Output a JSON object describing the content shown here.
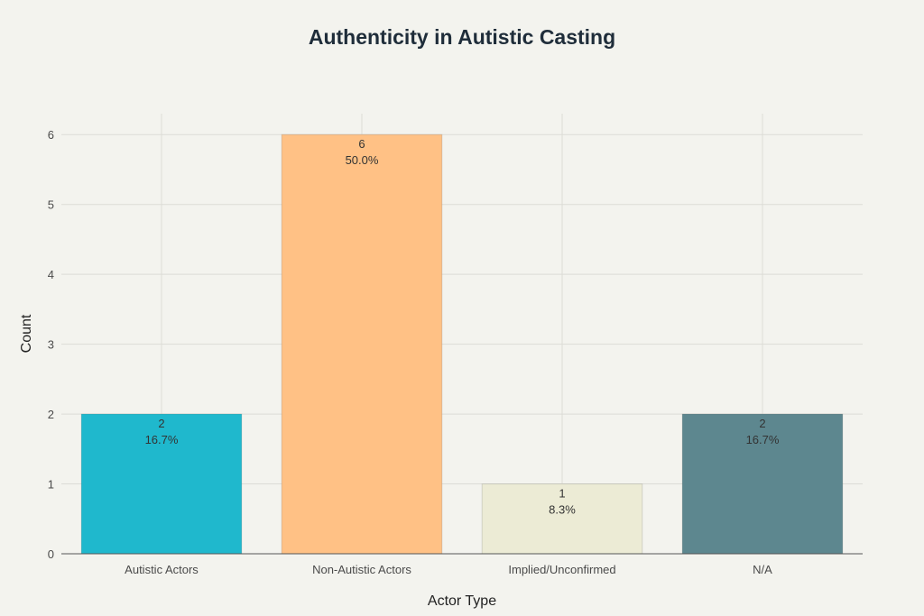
{
  "chart_data": {
    "type": "bar",
    "title": "Authenticity in Autistic Casting",
    "xlabel": "Actor Type",
    "ylabel": "Count",
    "categories": [
      "Autistic Actors",
      "Non-Autistic Actors",
      "Implied/Unconfirmed",
      "N/A"
    ],
    "values": [
      2,
      6,
      1,
      2
    ],
    "data_labels": [
      "16.7%",
      "50.0%",
      "8.3%",
      "16.7%"
    ],
    "colors": [
      "#1fb8cd",
      "#ffc185",
      "#eceBd5",
      "#5d878f"
    ],
    "ylim": [
      0,
      6.3
    ],
    "yticks": [
      0,
      1,
      2,
      3,
      4,
      5,
      6
    ],
    "grid": true,
    "legend": "none"
  }
}
